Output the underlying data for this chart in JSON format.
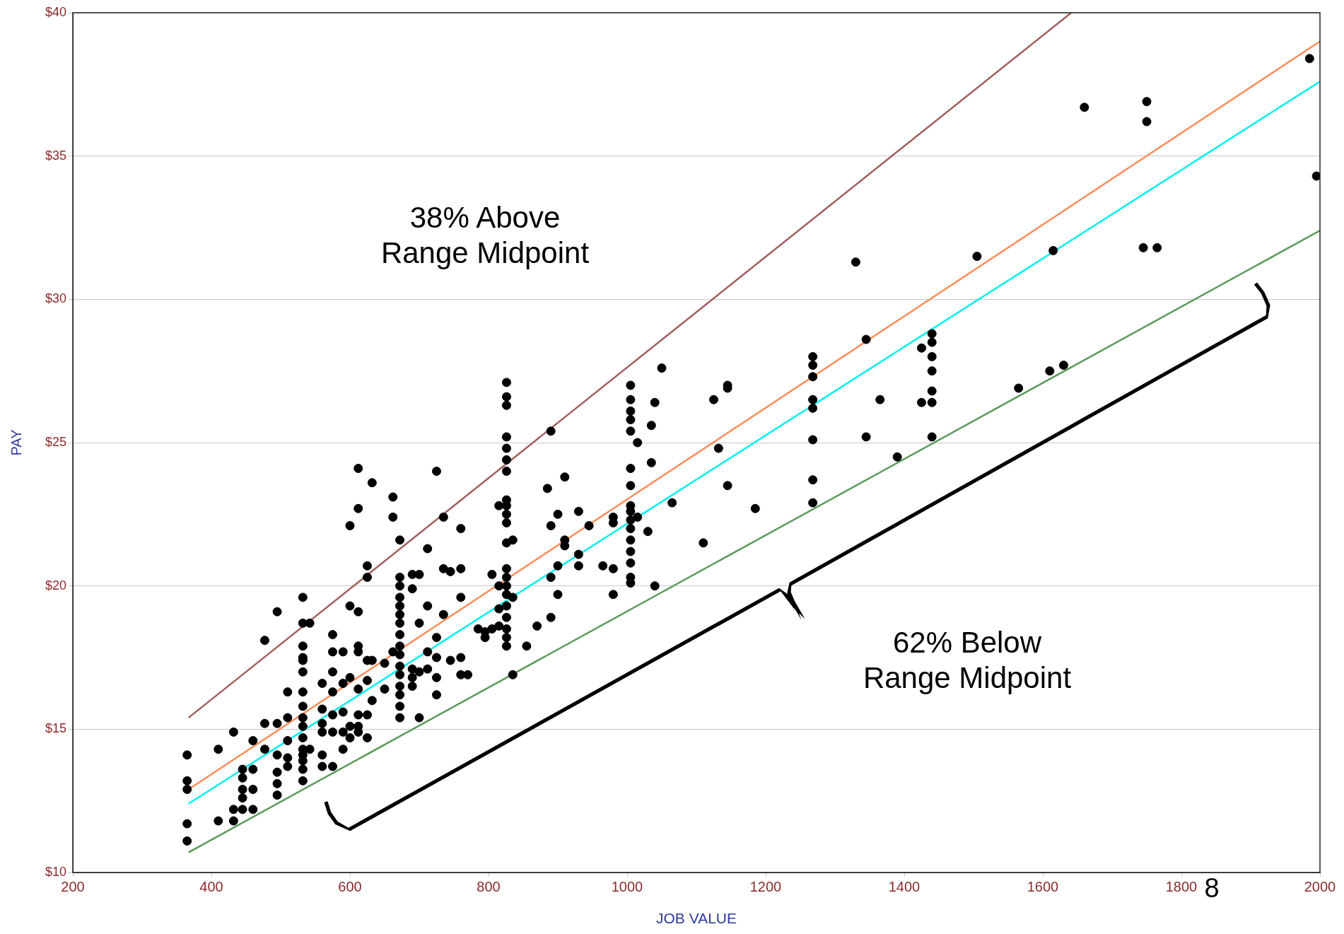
{
  "chart_data": {
    "type": "scatter",
    "xlabel": "JOB VALUE",
    "ylabel": "PAY",
    "xlim": [
      200,
      2000
    ],
    "xticks": [
      200,
      400,
      600,
      800,
      1000,
      1200,
      1400,
      1600,
      1800,
      2000
    ],
    "ylim": [
      10,
      40
    ],
    "yticks": [
      {
        "value": 10,
        "label": "$10"
      },
      {
        "value": 15,
        "label": "$15"
      },
      {
        "value": 20,
        "label": "$20"
      },
      {
        "value": 25,
        "label": "$25"
      },
      {
        "value": 30,
        "label": "$30"
      },
      {
        "value": 35,
        "label": "$35"
      },
      {
        "value": 40,
        "label": "$40"
      }
    ],
    "grid": "y",
    "line_style": "solid",
    "series": [
      {
        "marker": "circle",
        "color": "#000000",
        "x": [
          365,
          365,
          365,
          365,
          365,
          410,
          410,
          432,
          432,
          432,
          445,
          445,
          445,
          445,
          445,
          460,
          460,
          460,
          460,
          477,
          477,
          477,
          495,
          495,
          495,
          495,
          495,
          495,
          510,
          510,
          510,
          510,
          510,
          532,
          532,
          532,
          532,
          532,
          532,
          532,
          532,
          532,
          532,
          532,
          532,
          532,
          532,
          532,
          532,
          542,
          542,
          560,
          560,
          560,
          560,
          560,
          560,
          575,
          575,
          575,
          575,
          575,
          575,
          575,
          590,
          590,
          590,
          590,
          590,
          600,
          600,
          600,
          600,
          600,
          612,
          612,
          612,
          612,
          612,
          612,
          612,
          612,
          612,
          625,
          625,
          625,
          625,
          625,
          625,
          632,
          632,
          632,
          650,
          650,
          662,
          662,
          662,
          672,
          672,
          672,
          672,
          672,
          672,
          672,
          672,
          672,
          672,
          672,
          672,
          672,
          672,
          672,
          672,
          690,
          690,
          690,
          690,
          690,
          700,
          700,
          700,
          700,
          712,
          712,
          712,
          712,
          725,
          725,
          725,
          725,
          725,
          735,
          735,
          735,
          745,
          745,
          760,
          760,
          760,
          760,
          760,
          770,
          785,
          795,
          795,
          805,
          805,
          815,
          815,
          815,
          815,
          826,
          826,
          826,
          826,
          826,
          826,
          826,
          826,
          826,
          826,
          826,
          826,
          826,
          826,
          826,
          826,
          826,
          826,
          826,
          826,
          826,
          835,
          835,
          835,
          855,
          870,
          885,
          890,
          890,
          890,
          890,
          900,
          900,
          900,
          910,
          910,
          910,
          930,
          930,
          930,
          945,
          965,
          980,
          980,
          980,
          980,
          1005,
          1005,
          1005,
          1005,
          1005,
          1005,
          1005,
          1005,
          1005,
          1005,
          1005,
          1005,
          1005,
          1005,
          1005,
          1005,
          1015,
          1015,
          1030,
          1035,
          1035,
          1040,
          1040,
          1050,
          1065,
          1110,
          1125,
          1132,
          1145,
          1145,
          1145,
          1185,
          1268,
          1268,
          1268,
          1268,
          1268,
          1268,
          1268,
          1268,
          1330,
          1345,
          1345,
          1365,
          1390,
          1425,
          1425,
          1440,
          1440,
          1440,
          1440,
          1440,
          1440,
          1440,
          1505,
          1565,
          1610,
          1615,
          1630,
          1660,
          1745,
          1750,
          1750,
          1765,
          1985,
          1995
        ],
        "values": [
          14.1,
          13.2,
          12.9,
          11.7,
          11.1,
          14.3,
          11.8,
          14.9,
          12.2,
          11.8,
          13.6,
          13.3,
          12.9,
          12.6,
          12.2,
          14.6,
          13.6,
          12.9,
          12.2,
          18.1,
          15.2,
          14.3,
          19.1,
          15.2,
          14.1,
          13.5,
          13.1,
          12.7,
          16.3,
          15.4,
          14.6,
          14.0,
          13.7,
          19.6,
          18.7,
          17.9,
          17.5,
          17.4,
          17.0,
          16.3,
          15.8,
          15.4,
          15.1,
          14.7,
          14.3,
          14.1,
          13.9,
          13.6,
          13.2,
          18.7,
          14.3,
          16.6,
          15.7,
          15.2,
          14.9,
          14.1,
          13.7,
          18.3,
          17.7,
          17.0,
          16.3,
          15.5,
          14.9,
          13.7,
          17.7,
          16.6,
          15.6,
          14.9,
          14.3,
          22.1,
          19.3,
          16.8,
          15.1,
          14.7,
          24.1,
          22.7,
          19.1,
          17.9,
          17.7,
          16.4,
          15.5,
          15.1,
          14.9,
          20.7,
          20.3,
          17.4,
          16.7,
          15.5,
          14.7,
          23.6,
          17.4,
          16.0,
          17.3,
          16.4,
          23.1,
          22.4,
          17.7,
          21.6,
          20.3,
          20.0,
          19.6,
          19.3,
          19.0,
          18.7,
          18.3,
          17.9,
          17.6,
          17.2,
          16.9,
          16.5,
          16.2,
          15.8,
          15.4,
          20.4,
          19.9,
          17.1,
          16.8,
          16.5,
          20.4,
          18.7,
          17.0,
          15.4,
          21.3,
          19.3,
          17.7,
          17.1,
          24.0,
          18.2,
          17.5,
          16.8,
          16.2,
          22.4,
          20.6,
          19.0,
          20.5,
          17.4,
          22.0,
          20.6,
          19.6,
          17.5,
          16.9,
          16.9,
          18.5,
          18.4,
          18.2,
          20.4,
          18.5,
          22.8,
          20.0,
          19.2,
          18.6,
          27.1,
          26.6,
          26.3,
          25.2,
          24.8,
          24.4,
          24.0,
          23.0,
          22.8,
          22.5,
          22.2,
          21.5,
          20.6,
          20.3,
          20.0,
          19.7,
          19.3,
          18.9,
          18.5,
          18.2,
          17.9,
          21.6,
          19.6,
          16.9,
          17.9,
          18.6,
          23.4,
          25.4,
          22.1,
          20.3,
          18.9,
          22.5,
          20.7,
          19.7,
          23.8,
          21.6,
          21.4,
          22.6,
          21.1,
          20.7,
          22.1,
          20.7,
          22.4,
          22.2,
          20.6,
          19.7,
          27.0,
          26.5,
          26.1,
          25.8,
          25.4,
          24.1,
          23.5,
          22.8,
          22.6,
          22.3,
          22.0,
          21.6,
          21.2,
          20.8,
          20.3,
          20.1,
          25.0,
          22.4,
          21.9,
          25.6,
          24.3,
          26.4,
          20.0,
          27.6,
          22.9,
          21.5,
          26.5,
          24.8,
          27.0,
          26.9,
          23.5,
          22.7,
          28.0,
          27.7,
          27.3,
          26.5,
          26.2,
          25.1,
          23.7,
          22.9,
          31.3,
          28.6,
          25.2,
          26.5,
          24.5,
          28.3,
          26.4,
          28.8,
          28.5,
          28.0,
          27.5,
          26.8,
          26.4,
          25.2,
          31.5,
          26.9,
          27.5,
          31.7,
          27.7,
          36.7,
          31.8,
          36.9,
          36.2,
          31.8,
          38.4,
          34.3
        ]
      },
      {
        "type": "line",
        "color": "#a0605c",
        "x": [
          367,
          1641
        ],
        "values": [
          15.4,
          40
        ]
      },
      {
        "type": "line",
        "color": "#ff8c5a",
        "x": [
          367,
          2000
        ],
        "values": [
          12.9,
          39.0
        ]
      },
      {
        "type": "line",
        "color": "#00f0f0",
        "x": [
          367,
          2000
        ],
        "values": [
          12.4,
          37.6
        ]
      },
      {
        "type": "line",
        "color": "#5a9a5a",
        "x": [
          367,
          2000
        ],
        "values": [
          10.7,
          32.4
        ]
      }
    ],
    "annotations": [
      "38% Above\nRange Midpoint",
      "62% Below\nRange Midpoint",
      "8"
    ]
  }
}
